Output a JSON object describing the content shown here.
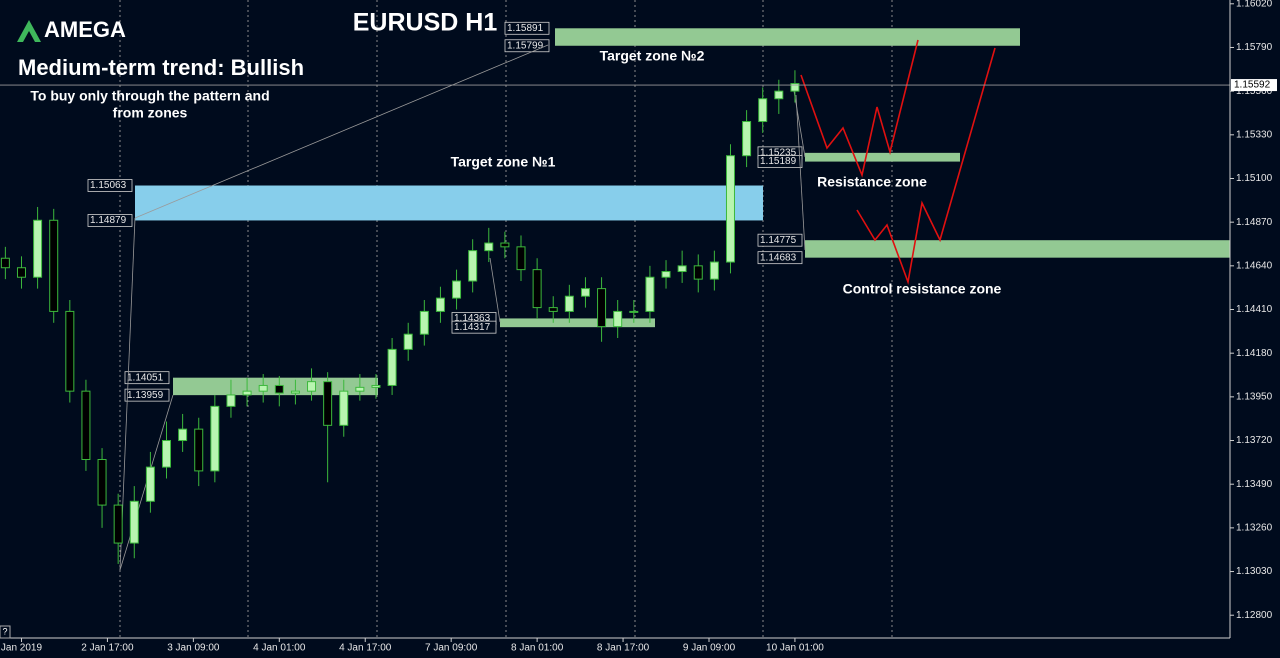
{
  "logo": "AMEGA",
  "chart_data": {
    "type": "candlestick",
    "title": "EURUSD H1",
    "subtitle": "Medium-term trend: Bullish",
    "annotations": [
      "To buy only through the pattern  and",
      "from zones"
    ],
    "x": [
      1,
      4,
      7,
      10,
      13,
      16,
      19,
      22,
      25,
      28,
      31,
      34,
      37,
      40,
      43,
      46,
      49,
      52,
      55,
      58,
      61,
      64,
      67,
      70,
      73,
      76,
      79,
      82,
      85,
      88,
      91,
      94,
      97,
      100,
      103,
      106,
      109,
      112,
      115,
      118,
      121,
      124,
      127,
      130,
      133,
      136,
      139,
      142,
      145,
      148
    ],
    "open": [
      1.1468,
      1.1463,
      1.1458,
      1.1488,
      1.144,
      1.1398,
      1.1362,
      1.1338,
      1.1318,
      1.134,
      1.1358,
      1.1372,
      1.1378,
      1.1356,
      1.139,
      1.1396,
      1.1398,
      1.1401,
      1.1397,
      1.1398,
      1.1403,
      1.138,
      1.1398,
      1.14,
      1.1401,
      1.142,
      1.1428,
      1.144,
      1.1447,
      1.1456,
      1.1472,
      1.1476,
      1.1474,
      1.1462,
      1.1442,
      1.144,
      1.1448,
      1.1452,
      1.1432,
      1.144,
      1.144,
      1.1458,
      1.1461,
      1.1464,
      1.1457,
      1.1466,
      1.1522,
      1.154,
      1.1552,
      1.1556
    ],
    "high": [
      1.1474,
      1.1469,
      1.1495,
      1.1494,
      1.1446,
      1.1404,
      1.1368,
      1.1344,
      1.1348,
      1.1366,
      1.1382,
      1.1386,
      1.1384,
      1.1396,
      1.1404,
      1.1405,
      1.1407,
      1.1406,
      1.1404,
      1.141,
      1.1408,
      1.1404,
      1.1407,
      1.1407,
      1.1426,
      1.1434,
      1.1446,
      1.1453,
      1.1462,
      1.1478,
      1.1484,
      1.1482,
      1.148,
      1.1468,
      1.1448,
      1.1454,
      1.1458,
      1.1458,
      1.1446,
      1.1446,
      1.1464,
      1.1467,
      1.1472,
      1.147,
      1.1472,
      1.1528,
      1.1546,
      1.1558,
      1.1562,
      1.1567
    ],
    "low": [
      1.1457,
      1.1452,
      1.1452,
      1.1434,
      1.1392,
      1.1356,
      1.1326,
      1.1307,
      1.131,
      1.1334,
      1.1352,
      1.1366,
      1.1348,
      1.135,
      1.1384,
      1.139,
      1.1392,
      1.139,
      1.1391,
      1.1393,
      1.135,
      1.1374,
      1.1393,
      1.1394,
      1.1396,
      1.1414,
      1.1422,
      1.1434,
      1.1441,
      1.145,
      1.1466,
      1.1468,
      1.1456,
      1.1436,
      1.1434,
      1.1434,
      1.1442,
      1.1424,
      1.1426,
      1.1434,
      1.1434,
      1.1452,
      1.1455,
      1.145,
      1.1451,
      1.146,
      1.1516,
      1.1534,
      1.1544,
      1.155
    ],
    "close": [
      1.1463,
      1.1458,
      1.1488,
      1.144,
      1.1398,
      1.1362,
      1.1338,
      1.1318,
      1.134,
      1.1358,
      1.1372,
      1.1378,
      1.1356,
      1.139,
      1.1396,
      1.1398,
      1.1401,
      1.1397,
      1.1398,
      1.1403,
      1.138,
      1.1398,
      1.14,
      1.1401,
      1.142,
      1.1428,
      1.144,
      1.1447,
      1.1456,
      1.1472,
      1.1476,
      1.1474,
      1.1462,
      1.1442,
      1.144,
      1.1448,
      1.1452,
      1.1432,
      1.144,
      1.144,
      1.1458,
      1.1461,
      1.1464,
      1.1457,
      1.1466,
      1.1522,
      1.154,
      1.1552,
      1.1556,
      1.156
    ],
    "bull_color": "#b8f5b0",
    "bear_color": "#000000",
    "wick_color": "#3cb83c",
    "xlim": [
      0,
      229
    ],
    "xticks": [
      {
        "value": 4,
        "label": "Jan 2019"
      },
      {
        "value": 20,
        "label": "2 Jan 17:00"
      },
      {
        "value": 36,
        "label": "3 Jan 09:00"
      },
      {
        "value": 52,
        "label": "4 Jan 01:00"
      },
      {
        "value": 68,
        "label": "4 Jan 17:00"
      },
      {
        "value": 84,
        "label": "7 Jan 09:00"
      },
      {
        "value": 100,
        "label": "8 Jan 01:00"
      },
      {
        "value": 116,
        "label": "8 Jan 17:00"
      },
      {
        "value": 132,
        "label": "9 Jan 09:00"
      },
      {
        "value": 148,
        "label": "10 Jan 01:00"
      }
    ],
    "ylim": [
      1.1268,
      1.1604
    ],
    "yticks": [
      {
        "value": 1.1602,
        "label": "1.16020"
      },
      {
        "value": 1.1579,
        "label": "1.15790"
      },
      {
        "value": 1.1556,
        "label": "1.15560"
      },
      {
        "value": 1.1533,
        "label": "1.15330"
      },
      {
        "value": 1.151,
        "label": "1.15100"
      },
      {
        "value": 1.1487,
        "label": "1.14870"
      },
      {
        "value": 1.1464,
        "label": "1.14640"
      },
      {
        "value": 1.1441,
        "label": "1.14410"
      },
      {
        "value": 1.1418,
        "label": "1.14180"
      },
      {
        "value": 1.1395,
        "label": "1.13950"
      },
      {
        "value": 1.1372,
        "label": "1.13720"
      },
      {
        "value": 1.1349,
        "label": "1.13490"
      },
      {
        "value": 1.1326,
        "label": "1.13260"
      },
      {
        "value": 1.1303,
        "label": "1.13030"
      },
      {
        "value": 1.128,
        "label": "1.12800"
      }
    ],
    "current_price": {
      "value": 1.15592,
      "label": "1.15592"
    },
    "zones": [
      {
        "name": "Target zone №2",
        "top": 1.15891,
        "bottom": 1.15799,
        "color": "#93c993"
      },
      {
        "name": "Target zone №1",
        "top": 1.15063,
        "bottom": 1.14879,
        "color": "#87ceeb"
      },
      {
        "name": "Resistance zone",
        "top": 1.15235,
        "bottom": 1.15189,
        "color": "#93c993"
      },
      {
        "name": "Control resistance zone",
        "top": 1.14775,
        "bottom": 1.14683,
        "color": "#93c993"
      },
      {
        "top": 1.14363,
        "bottom": 1.14317,
        "color": "#93c993"
      },
      {
        "top": 1.14051,
        "bottom": 1.13959,
        "color": "#93c993"
      }
    ]
  }
}
